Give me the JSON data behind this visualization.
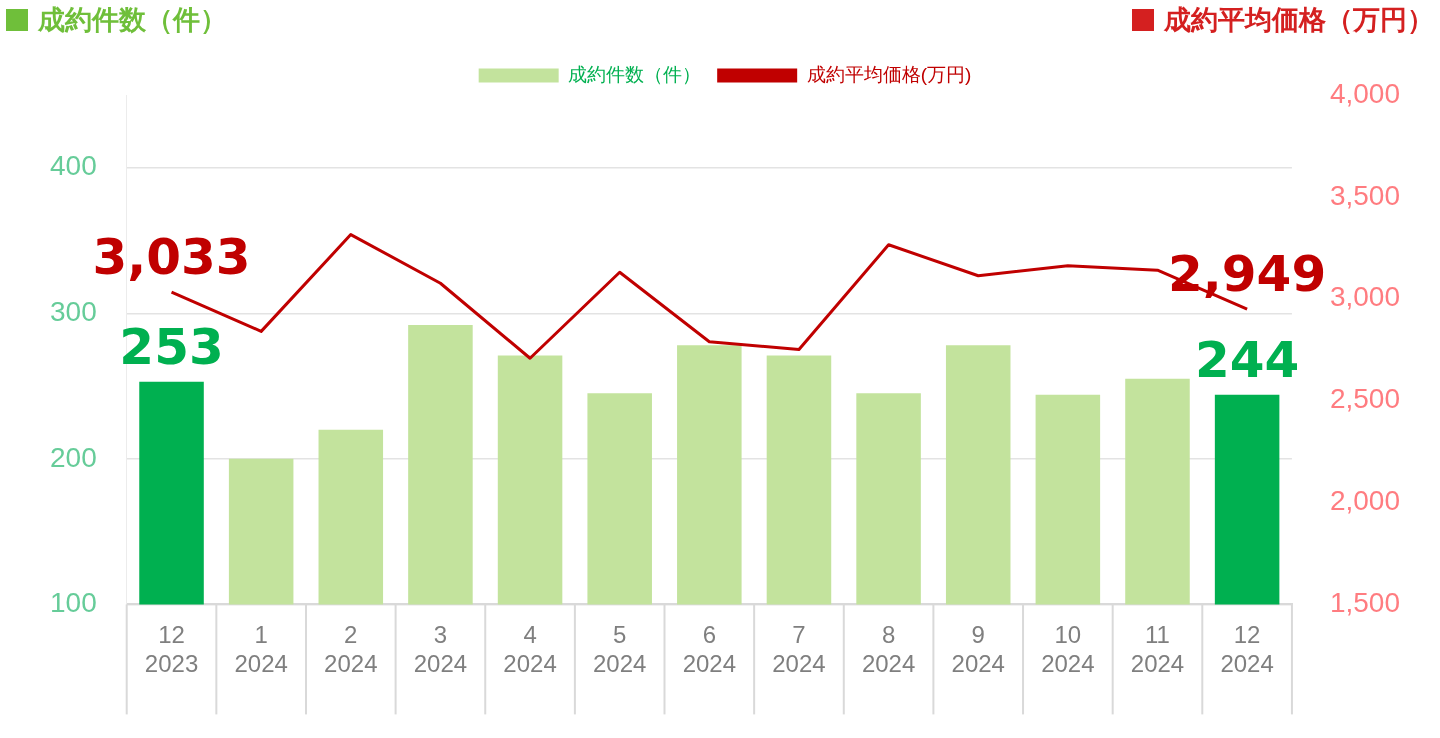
{
  "chart_data": {
    "type": "bar",
    "ylabel": "成約件数（件）",
    "y2label": "成約平均価格（万円）",
    "categories": [
      "12\n2023",
      "1\n2024",
      "2\n2024",
      "3\n2024",
      "4\n2024",
      "5\n2024",
      "6\n2024",
      "7\n2024",
      "8\n2024",
      "9\n2024",
      "10\n2024",
      "11\n2024",
      "12\n2024"
    ],
    "series": [
      {
        "name": "成約件数（件）",
        "color": "#c3e39d",
        "colors": [
          "#00b050",
          "#c3e39d",
          "#c3e39d",
          "#c3e39d",
          "#c3e39d",
          "#c3e39d",
          "#c3e39d",
          "#c3e39d",
          "#c3e39d",
          "#c3e39d",
          "#c3e39d",
          "#c3e39d",
          "#00b050"
        ],
        "values": [
          253,
          200,
          220,
          292,
          271,
          245,
          278,
          271,
          245,
          278,
          244,
          255,
          244
        ],
        "value_labels": [
          "253",
          null,
          null,
          null,
          null,
          null,
          null,
          null,
          null,
          null,
          null,
          null,
          "244"
        ]
      },
      {
        "name": "成約平均価格(万円)",
        "type": "line",
        "axis": "y2",
        "color": "#c00000",
        "values": [
          3033,
          2840,
          3315,
          3076,
          2708,
          3130,
          2789,
          2751,
          3265,
          3113,
          3162,
          3140,
          2949
        ],
        "value_labels": [
          "3,033",
          null,
          null,
          null,
          null,
          null,
          null,
          null,
          null,
          null,
          null,
          null,
          "2,949"
        ]
      }
    ],
    "ylim": [
      100,
      450
    ],
    "yticks": [
      100,
      200,
      300,
      400
    ],
    "y2lim": [
      1500,
      4000
    ],
    "y2ticks": [
      {
        "value": 1500,
        "label": "1,500"
      },
      {
        "value": 2000,
        "label": "2,000"
      },
      {
        "value": 2500,
        "label": "2,500"
      },
      {
        "value": 3000,
        "label": "3,000"
      },
      {
        "value": 3500,
        "label": "3,500"
      },
      {
        "value": 4000,
        "label": "4,000"
      }
    ],
    "grid": "y",
    "legend": "top",
    "marker": "none",
    "line_style": "solid"
  }
}
